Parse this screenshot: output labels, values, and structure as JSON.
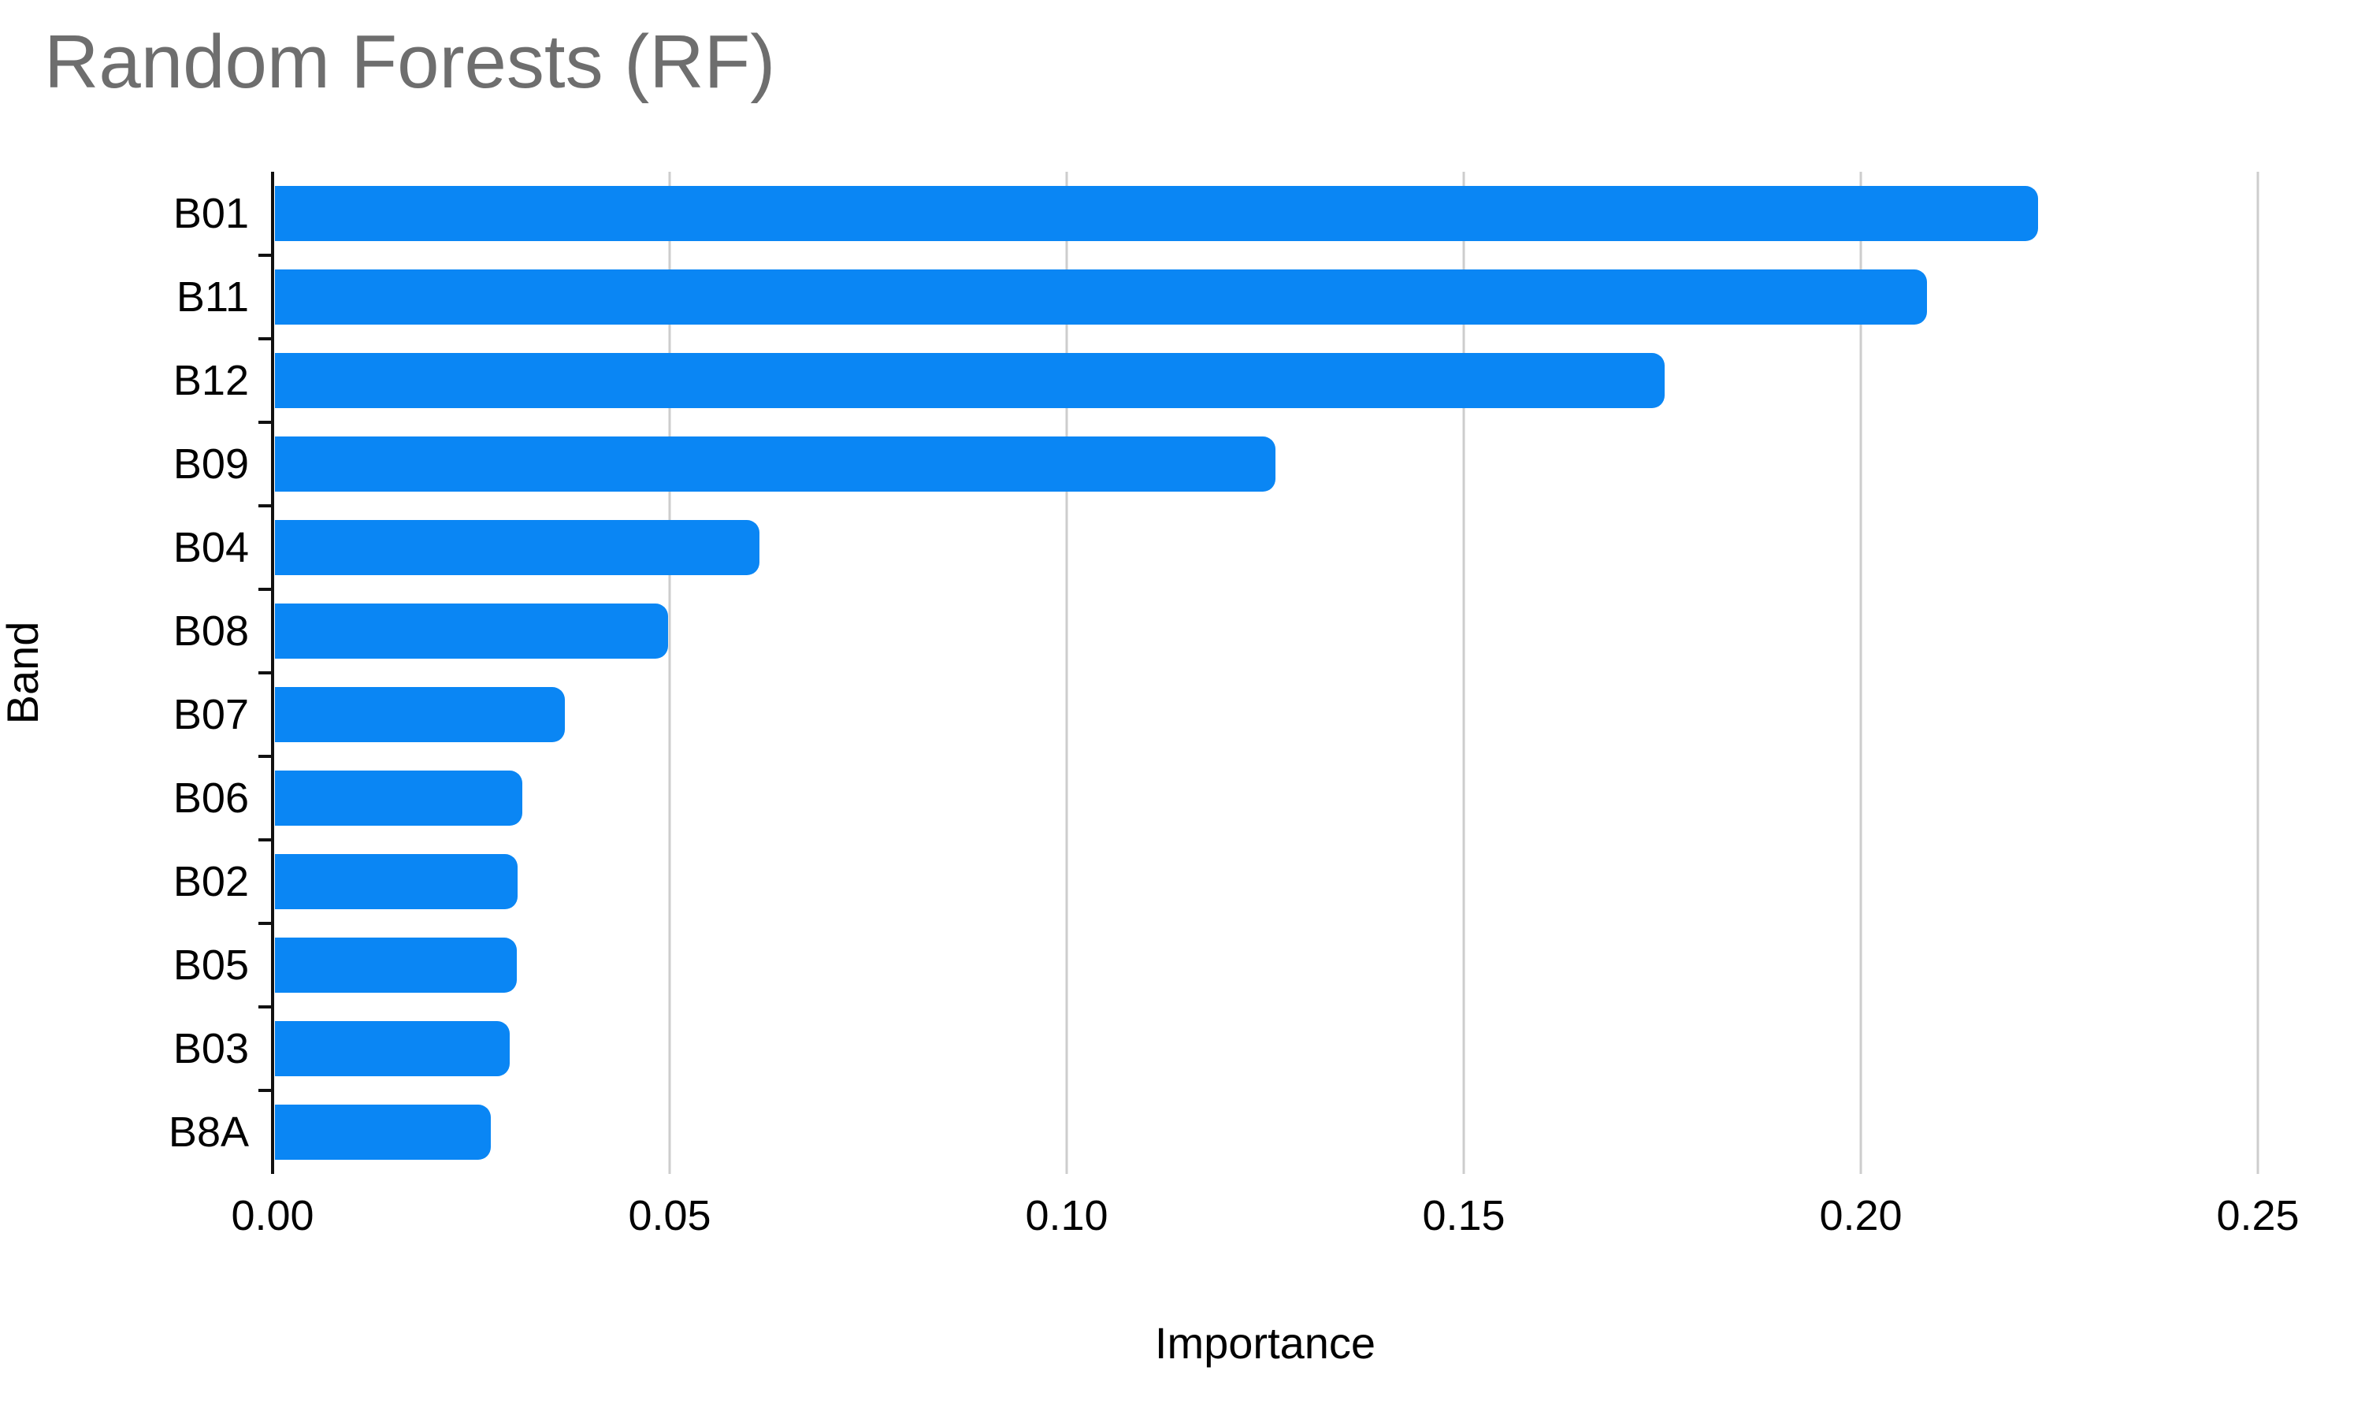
{
  "title": "Random Forests (RF)",
  "chart_data": {
    "type": "bar",
    "orientation": "horizontal",
    "title": "Random Forests (RF)",
    "xlabel": "Importance",
    "ylabel": "Band",
    "categories": [
      "B01",
      "B11",
      "B12",
      "B09",
      "B04",
      "B08",
      "B07",
      "B06",
      "B02",
      "B05",
      "B03",
      "B8A"
    ],
    "values": [
      0.222,
      0.208,
      0.175,
      0.126,
      0.061,
      0.0495,
      0.0365,
      0.0312,
      0.0306,
      0.0305,
      0.0296,
      0.0272
    ],
    "xlim": [
      0,
      0.25
    ],
    "xticks": [
      0,
      0.05,
      0.1,
      0.15,
      0.2,
      0.25
    ],
    "xtick_labels": [
      "0.00",
      "0.05",
      "0.10",
      "0.15",
      "0.20",
      "0.25"
    ],
    "grid": true,
    "legend": false,
    "colors": {
      "bar": "#0A86F4",
      "gridline": "#cdcdcd",
      "axis": "#111111",
      "title_text": "#6e6e6e",
      "label_text": "#000000",
      "background": "#ffffff"
    }
  }
}
